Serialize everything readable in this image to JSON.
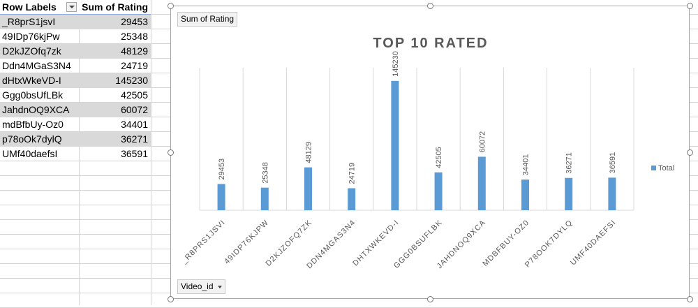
{
  "pivot": {
    "header": {
      "row_labels": "Row Labels",
      "sum_label": "Sum of Rating"
    },
    "rows": [
      {
        "label": "_R8prS1jsvI",
        "value": "29453"
      },
      {
        "label": "49IDp76kjPw",
        "value": "25348"
      },
      {
        "label": "D2kJZOfq7zk",
        "value": "48129"
      },
      {
        "label": "Ddn4MGaS3N4",
        "value": "24719"
      },
      {
        "label": "dHtxWkeVD-I",
        "value": "145230"
      },
      {
        "label": "Ggg0bsUfLBk",
        "value": "42505"
      },
      {
        "label": "JahdnOQ9XCA",
        "value": "60072"
      },
      {
        "label": "mdBfbUy-Oz0",
        "value": "34401"
      },
      {
        "label": "p78oOk7dylQ",
        "value": "36271"
      },
      {
        "label": "UMf40daefsI",
        "value": "36591"
      }
    ]
  },
  "chart": {
    "value_field_button": "Sum of Rating",
    "axis_field_button": "Video_id",
    "colors": {
      "bar": "#5b9bd5",
      "title": "#595959"
    }
  },
  "chart_data": {
    "type": "bar",
    "title": "TOP 10 RATED",
    "categories": [
      "_R8PRS1JSVI",
      "49IDP76KJPW",
      "D2KJZOFQ7ZK",
      "DDN4MGAS3N4",
      "DHTXWKEVD-I",
      "GGG0BSUFLBK",
      "JAHDNOQ9XCA",
      "MDBFBUY-OZ0",
      "P78OOK7DYLQ",
      "UMF40DAEFSI"
    ],
    "series": [
      {
        "name": "Total",
        "values": [
          29453,
          25348,
          48129,
          24719,
          145230,
          42505,
          60072,
          34401,
          36271,
          36591
        ]
      }
    ],
    "xlabel": "",
    "ylabel": "",
    "ylim": [
      0,
      160000
    ],
    "grid": "vertical",
    "legend": "right"
  }
}
